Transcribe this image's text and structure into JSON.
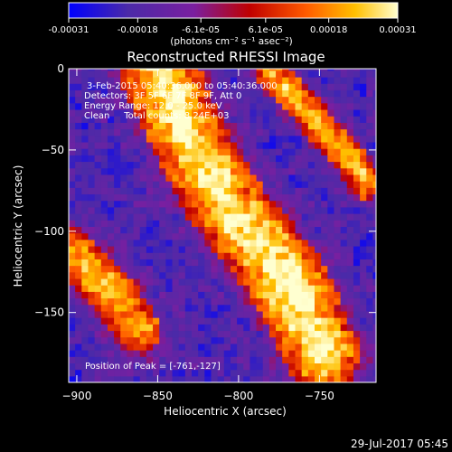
{
  "chart_data": {
    "type": "heatmap",
    "title": "Reconstructed RHESSI Image",
    "xlabel": "Heliocentric X (arcsec)",
    "ylabel": "Heliocentric Y (arcsec)",
    "xlim": [
      -905,
      -715
    ],
    "ylim": [
      -193,
      0
    ],
    "x_ticks": [
      -900,
      -850,
      -800,
      -750
    ],
    "x_tick_labels": [
      "−900",
      "−850",
      "−800",
      "−750"
    ],
    "y_ticks": [
      0,
      -50,
      -100,
      -150
    ],
    "y_tick_labels": [
      "0",
      "−50",
      "−100",
      "−150"
    ],
    "colorbar": {
      "range": [
        -0.00031,
        0.00031
      ],
      "tick_values": [
        -0.00031,
        -0.00018,
        -6.1e-05,
        6.1e-05,
        0.00018,
        0.00031
      ],
      "tick_labels": [
        "-0.00031",
        "-0.00018",
        "-6.1e-05",
        "6.1e-05",
        "0.00018",
        "0.00031"
      ],
      "unit_label": "(photons cm⁻² s⁻¹ asec⁻²)",
      "colormap": [
        "#0000ff",
        "#4b2aa8",
        "#7a1fa0",
        "#c00000",
        "#ff5a00",
        "#ffc000",
        "#ffffd0"
      ]
    },
    "annotations": [
      "3-Feb-2015 05:40:36.000 to 05:40:36.000",
      "Detectors: 3F 5F 6F 7F 8F 9F, Att 0",
      "Energy Range: 12.0 - 25.0 keV",
      "Clean     Total counts: 8.24E+03"
    ],
    "peak_label": "Position of Peak = [-761,-127]",
    "peak_position": [
      -761,
      -127
    ],
    "emission_ridges": [
      {
        "name": "main",
        "points": [
          [
            -848,
            -5
          ],
          [
            -832,
            -40
          ],
          [
            -810,
            -80
          ],
          [
            -785,
            -110
          ],
          [
            -765,
            -140
          ],
          [
            -748,
            -175
          ]
        ],
        "width_arcsec": 30
      },
      {
        "name": "upper-right",
        "points": [
          [
            -780,
            0
          ],
          [
            -745,
            -40
          ],
          [
            -720,
            -70
          ]
        ],
        "width_arcsec": 14
      },
      {
        "name": "lower-left",
        "points": [
          [
            -905,
            -110
          ],
          [
            -880,
            -135
          ],
          [
            -862,
            -160
          ]
        ],
        "width_arcsec": 20
      }
    ]
  },
  "footer": {
    "timestamp": "29-Jul-2017 05:45"
  },
  "colors": {
    "background": "#000000",
    "text": "#ffffff"
  }
}
